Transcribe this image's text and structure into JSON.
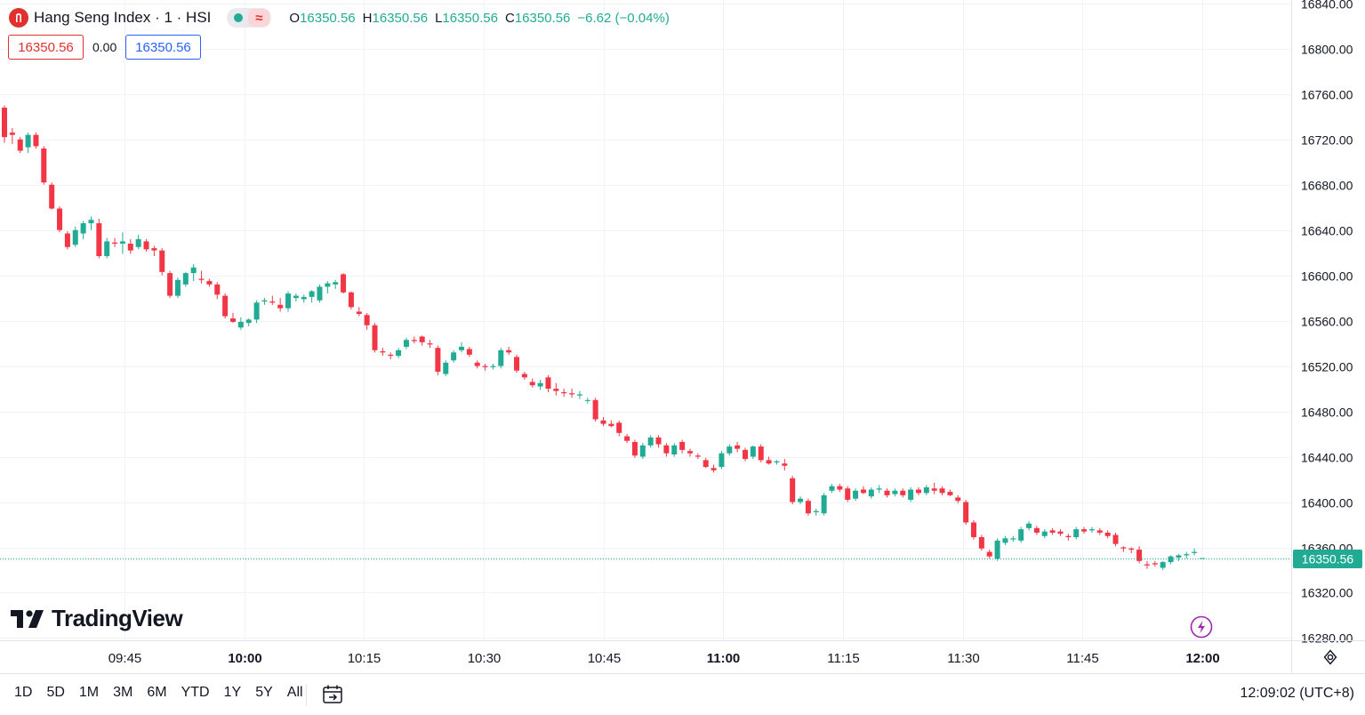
{
  "header": {
    "title": "Hang Seng Index · 1 · HSI",
    "symbol_icon": "hsi-logo-icon",
    "status_icon": "market-open-dot-icon",
    "data_icon": "delayed-data-wave-icon",
    "wave_glyph": "≈",
    "ohlc": {
      "o_label": "O",
      "o_value": "16350.56",
      "h_label": "H",
      "h_value": "16350.56",
      "l_label": "L",
      "l_value": "16350.56",
      "c_label": "C",
      "c_value": "16350.56",
      "change": "−6.62 (−0.04%)"
    }
  },
  "trade": {
    "bid": "16350.56",
    "spread": "0.00",
    "ask": "16350.56"
  },
  "brand": {
    "logo_icon": "tradingview-logo-icon",
    "name": "TradingView"
  },
  "bottom": {
    "ranges": [
      "1D",
      "5D",
      "1M",
      "3M",
      "6M",
      "YTD",
      "1Y",
      "5Y",
      "All"
    ],
    "clock": "12:09:02 (UTC+8)"
  },
  "colors": {
    "up": "#22ab94",
    "down": "#f23645",
    "grid": "#f0f3fa",
    "text": "#131722"
  },
  "chart_data": {
    "type": "candlestick",
    "title": "Hang Seng Index · 1 · HSI",
    "xlabel": "",
    "ylabel": "",
    "y_range": [
      16278,
      16843
    ],
    "y_ticks": [
      "16840.00",
      "16800.00",
      "16760.00",
      "16720.00",
      "16680.00",
      "16640.00",
      "16600.00",
      "16560.00",
      "16520.00",
      "16480.00",
      "16440.00",
      "16400.00",
      "16360.00",
      "16320.00",
      "16280.00"
    ],
    "x_ticks": [
      {
        "label": "09:45",
        "bold": false
      },
      {
        "label": "10:00",
        "bold": true
      },
      {
        "label": "10:15",
        "bold": false
      },
      {
        "label": "10:30",
        "bold": false
      },
      {
        "label": "10:45",
        "bold": false
      },
      {
        "label": "11:00",
        "bold": true
      },
      {
        "label": "11:15",
        "bold": false
      },
      {
        "label": "11:30",
        "bold": false
      },
      {
        "label": "11:45",
        "bold": false
      },
      {
        "label": "12:00",
        "bold": true
      }
    ],
    "last_price": "16350.56",
    "grid": true,
    "candles": [
      [
        16748,
        16750,
        16717,
        16722
      ],
      [
        16726,
        16730,
        16716,
        16724
      ],
      [
        16720,
        16722,
        16708,
        16710
      ],
      [
        16713,
        16726,
        16708,
        16724
      ],
      [
        16724,
        16726,
        16712,
        16714
      ],
      [
        16712,
        16714,
        16680,
        16682
      ],
      [
        16680,
        16682,
        16658,
        16659
      ],
      [
        16659,
        16661,
        16638,
        16640
      ],
      [
        16637,
        16639,
        16623,
        16625
      ],
      [
        16627,
        16643,
        16625,
        16640
      ],
      [
        16637,
        16648,
        16632,
        16646
      ],
      [
        16646,
        16652,
        16640,
        16649
      ],
      [
        16646,
        16650,
        16615,
        16617
      ],
      [
        16617,
        16633,
        16615,
        16630
      ],
      [
        16629,
        16633,
        16625,
        16628
      ],
      [
        16628,
        16638,
        16619,
        16630
      ],
      [
        16628,
        16632,
        16619,
        16622
      ],
      [
        16625,
        16636,
        16623,
        16632
      ],
      [
        16630,
        16632,
        16621,
        16623
      ],
      [
        16624,
        16626,
        16617,
        16622
      ],
      [
        16622,
        16624,
        16600,
        16603
      ],
      [
        16602,
        16604,
        16580,
        16582
      ],
      [
        16582,
        16598,
        16580,
        16596
      ],
      [
        16592,
        16603,
        16590,
        16602
      ],
      [
        16602,
        16610,
        16595,
        16607
      ],
      [
        16597,
        16604,
        16593,
        16596
      ],
      [
        16595,
        16597,
        16590,
        16592
      ],
      [
        16592,
        16594,
        16579,
        16583
      ],
      [
        16582,
        16584,
        16562,
        16564
      ],
      [
        16562,
        16567,
        16558,
        16559
      ],
      [
        16554,
        16563,
        16552,
        16559
      ],
      [
        16558,
        16562,
        16555,
        16561
      ],
      [
        16561,
        16578,
        16558,
        16576
      ],
      [
        16577,
        16580,
        16574,
        16578
      ],
      [
        16577,
        16582,
        16574,
        16576
      ],
      [
        16574,
        16580,
        16568,
        16571
      ],
      [
        16571,
        16586,
        16568,
        16584
      ],
      [
        16580,
        16584,
        16577,
        16582
      ],
      [
        16579,
        16583,
        16576,
        16581
      ],
      [
        16581,
        16587,
        16576,
        16586
      ],
      [
        16578,
        16592,
        16576,
        16590
      ],
      [
        16590,
        16595,
        16584,
        16593
      ],
      [
        16592,
        16596,
        16588,
        16594
      ],
      [
        16601,
        16602,
        16584,
        16585
      ],
      [
        16585,
        16586,
        16570,
        16572
      ],
      [
        16568,
        16572,
        16564,
        16566
      ],
      [
        16565,
        16567,
        16552,
        16556
      ],
      [
        16556,
        16558,
        16532,
        16534
      ],
      [
        16533,
        16536,
        16529,
        16532
      ],
      [
        16530,
        16532,
        16526,
        16529
      ],
      [
        16529,
        16536,
        16527,
        16534
      ],
      [
        16537,
        16545,
        16535,
        16543
      ],
      [
        16543,
        16546,
        16540,
        16542
      ],
      [
        16546,
        16547,
        16538,
        16541
      ],
      [
        16540,
        16543,
        16536,
        16539
      ],
      [
        16536,
        16538,
        16512,
        16515
      ],
      [
        16513,
        16525,
        16511,
        16523
      ],
      [
        16525,
        16534,
        16523,
        16532
      ],
      [
        16534,
        16541,
        16532,
        16537
      ],
      [
        16535,
        16537,
        16528,
        16530
      ],
      [
        16523,
        16525,
        16518,
        16520
      ],
      [
        16520,
        16522,
        16516,
        16519
      ],
      [
        16519,
        16522,
        16517,
        16520
      ],
      [
        16520,
        16536,
        16518,
        16534
      ],
      [
        16534,
        16537,
        16530,
        16532
      ],
      [
        16528,
        16530,
        16514,
        16516
      ],
      [
        16513,
        16515,
        16508,
        16510
      ],
      [
        16506,
        16509,
        16501,
        16503
      ],
      [
        16502,
        16508,
        16499,
        16505
      ],
      [
        16510,
        16512,
        16497,
        16500
      ],
      [
        16500,
        16505,
        16494,
        16498
      ],
      [
        16497,
        16500,
        16493,
        16496
      ],
      [
        16496,
        16500,
        16492,
        16495
      ],
      [
        16494,
        16498,
        16491,
        16495
      ],
      [
        16490,
        16492,
        16487,
        16490
      ],
      [
        16490,
        16492,
        16471,
        16473
      ],
      [
        16472,
        16475,
        16467,
        16469
      ],
      [
        16469,
        16472,
        16466,
        16467
      ],
      [
        16470,
        16472,
        16458,
        16461
      ],
      [
        16458,
        16460,
        16452,
        16454
      ],
      [
        16453,
        16455,
        16439,
        16441
      ],
      [
        16440,
        16452,
        16438,
        16450
      ],
      [
        16450,
        16459,
        16448,
        16457
      ],
      [
        16457,
        16459,
        16448,
        16451
      ],
      [
        16450,
        16452,
        16440,
        16443
      ],
      [
        16442,
        16452,
        16440,
        16450
      ],
      [
        16453,
        16455,
        16443,
        16446
      ],
      [
        16445,
        16447,
        16440,
        16443
      ],
      [
        16441,
        16443,
        16438,
        16440
      ],
      [
        16437,
        16439,
        16430,
        16431
      ],
      [
        16430,
        16433,
        16426,
        16428
      ],
      [
        16431,
        16445,
        16429,
        16443
      ],
      [
        16443,
        16451,
        16441,
        16449
      ],
      [
        16450,
        16453,
        16444,
        16447
      ],
      [
        16446,
        16448,
        16436,
        16438
      ],
      [
        16440,
        16450,
        16438,
        16449
      ],
      [
        16449,
        16451,
        16435,
        16437
      ],
      [
        16437,
        16440,
        16433,
        16434
      ],
      [
        16435,
        16437,
        16433,
        16436
      ],
      [
        16434,
        16438,
        16428,
        16432
      ],
      [
        16421,
        16423,
        16398,
        16400
      ],
      [
        16400,
        16405,
        16398,
        16403
      ],
      [
        16401,
        16403,
        16388,
        16390
      ],
      [
        16391,
        16394,
        16388,
        16392
      ],
      [
        16390,
        16408,
        16388,
        16406
      ],
      [
        16410,
        16416,
        16408,
        16414
      ],
      [
        16414,
        16416,
        16409,
        16411
      ],
      [
        16412,
        16414,
        16400,
        16402
      ],
      [
        16403,
        16412,
        16401,
        16410
      ],
      [
        16411,
        16414,
        16407,
        16408
      ],
      [
        16405,
        16413,
        16403,
        16411
      ],
      [
        16411,
        16415,
        16408,
        16412
      ],
      [
        16410,
        16412,
        16404,
        16406
      ],
      [
        16407,
        16412,
        16405,
        16410
      ],
      [
        16410,
        16412,
        16404,
        16406
      ],
      [
        16402,
        16413,
        16400,
        16411
      ],
      [
        16411,
        16413,
        16406,
        16408
      ],
      [
        16408,
        16415,
        16406,
        16413
      ],
      [
        16412,
        16417,
        16407,
        16410
      ],
      [
        16412,
        16414,
        16406,
        16408
      ],
      [
        16409,
        16411,
        16405,
        16406
      ],
      [
        16404,
        16406,
        16399,
        16401
      ],
      [
        16400,
        16402,
        16380,
        16382
      ],
      [
        16382,
        16384,
        16367,
        16369
      ],
      [
        16369,
        16371,
        16357,
        16359
      ],
      [
        16356,
        16358,
        16350,
        16352
      ],
      [
        16350,
        16368,
        16348,
        16366
      ],
      [
        16364,
        16370,
        16362,
        16368
      ],
      [
        16367,
        16370,
        16365,
        16368
      ],
      [
        16366,
        16378,
        16364,
        16376
      ],
      [
        16377,
        16383,
        16375,
        16381
      ],
      [
        16377,
        16379,
        16371,
        16373
      ],
      [
        16370,
        16376,
        16368,
        16374
      ],
      [
        16375,
        16377,
        16371,
        16373
      ],
      [
        16374,
        16376,
        16370,
        16372
      ],
      [
        16370,
        16372,
        16366,
        16369
      ],
      [
        16369,
        16378,
        16367,
        16376
      ],
      [
        16376,
        16378,
        16372,
        16374
      ],
      [
        16375,
        16378,
        16373,
        16376
      ],
      [
        16375,
        16377,
        16371,
        16373
      ],
      [
        16373,
        16375,
        16368,
        16370
      ],
      [
        16371,
        16373,
        16361,
        16363
      ],
      [
        16360,
        16361,
        16356,
        16359
      ],
      [
        16359,
        16360,
        16355,
        16358
      ],
      [
        16358,
        16361,
        16346,
        16348
      ],
      [
        16345,
        16348,
        16341,
        16344
      ],
      [
        16346,
        16348,
        16343,
        16345
      ],
      [
        16342,
        16348,
        16340,
        16347
      ],
      [
        16347,
        16353,
        16345,
        16352
      ],
      [
        16351,
        16354,
        16348,
        16353
      ],
      [
        16353,
        16356,
        16350,
        16354
      ],
      [
        16355,
        16359,
        16353,
        16356
      ],
      [
        16350.56,
        16350.56,
        16350.56,
        16350.56
      ]
    ]
  }
}
